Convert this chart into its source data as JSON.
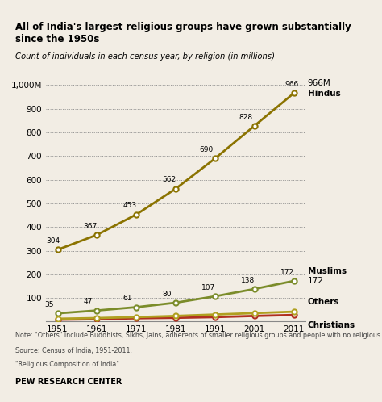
{
  "title": "All of India's largest religious groups have grown substantially since the 1950s",
  "subtitle": "Count of individuals in each census year, by religion (in millions)",
  "years": [
    1951,
    1961,
    1971,
    1981,
    1991,
    2001,
    2011
  ],
  "hindus": [
    304,
    367,
    453,
    562,
    690,
    828,
    966
  ],
  "muslims": [
    35,
    47,
    61,
    80,
    107,
    138,
    172
  ],
  "christians": [
    8,
    10,
    14,
    16,
    19,
    24,
    28
  ],
  "others": [
    12,
    15,
    19,
    24,
    30,
    36,
    42
  ],
  "hindus_color": "#8B7300",
  "muslims_color": "#7B8C2A",
  "christians_color": "#B03020",
  "others_color": "#B0A020",
  "bg_color": "#F2EDE4",
  "note1": "Note: \"Others\" include Buddhists, Sikhs, Jains, adherents of smaller religious groups and people with no religious affiliation.",
  "note2": "Source: Census of India, 1951-2011.",
  "note3": "\"Religious Composition of India\"",
  "footer": "PEW RESEARCH CENTER",
  "ylim_max": 1000,
  "yticks": [
    100,
    200,
    300,
    400,
    500,
    600,
    700,
    800,
    900,
    1000
  ],
  "ytick_labels": [
    "100",
    "200",
    "300",
    "400",
    "500",
    "600",
    "700",
    "800",
    "900",
    "1,000M"
  ]
}
